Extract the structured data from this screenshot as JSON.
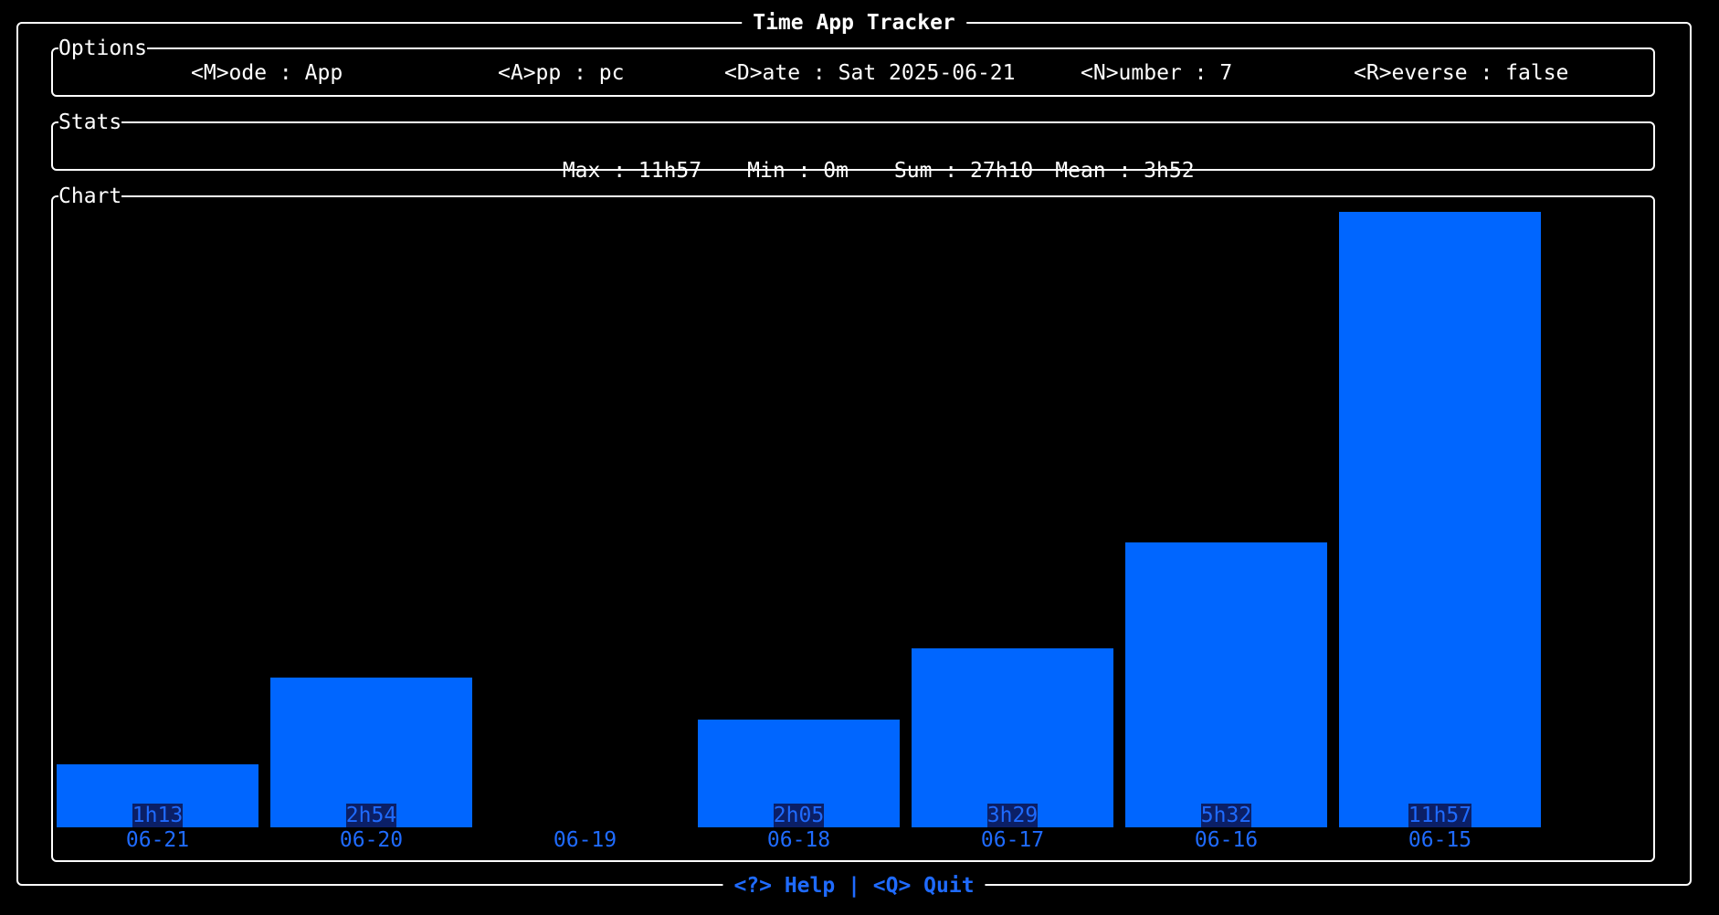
{
  "app": {
    "title": "Time App Tracker",
    "footer": "<?> Help | <Q> Quit"
  },
  "options": {
    "section_title": "Options",
    "mode": "<M>ode : App",
    "app": "<A>pp : pc",
    "date": "<D>ate : Sat 2025-06-21",
    "number": "<N>umber : 7",
    "reverse": "<R>everse : false"
  },
  "stats": {
    "section_title": "Stats",
    "max": "Max : 11h57",
    "min": "Min : 0m",
    "sum": "Sum : 27h10",
    "mean": "Mean : 3h52"
  },
  "chart": {
    "section_title": "Chart"
  },
  "colors": {
    "background": "#000000",
    "foreground": "#ffffff",
    "accent": "#0066ff",
    "label": "#1f6bff"
  },
  "chart_data": {
    "type": "bar",
    "categories": [
      "06-21",
      "06-20",
      "06-19",
      "06-18",
      "06-17",
      "06-16",
      "06-15"
    ],
    "values": [
      73,
      174,
      0,
      125,
      209,
      332,
      717
    ],
    "value_labels": [
      "1h13",
      "2h54",
      "",
      "2h05",
      "3h29",
      "5h32",
      "11h57"
    ],
    "unit": "minutes",
    "title": "",
    "xlabel": "",
    "ylabel": "",
    "ylim": [
      0,
      717
    ],
    "grid": false,
    "legend": "none"
  }
}
